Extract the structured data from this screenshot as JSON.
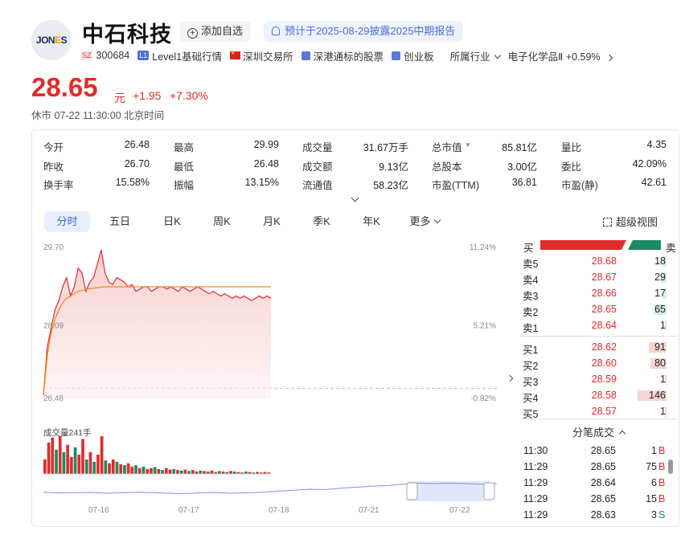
{
  "header": {
    "logo_text": "JONES",
    "stock_name": "中石科技",
    "add_fav": "添加自选",
    "notice": "预计于2025-08-29披露2025中期报告",
    "market_tag": "SZ",
    "code": "300684",
    "level_tag": "L1",
    "level_label": "Level1基础行情",
    "exchange": "深圳交易所",
    "connect": "深港通标的股票",
    "board": "创业板",
    "industry_label": "所属行业",
    "industry_name": "电子化学品Ⅱ",
    "industry_change": "+0.59%"
  },
  "quote": {
    "price": "28.65",
    "unit": "元",
    "change": "+1.95",
    "change_pct": "+7.30%",
    "status": "休市",
    "datetime": "07-22 11:30:00 北京时间"
  },
  "stats": [
    [
      {
        "label": "今开",
        "value": "26.48",
        "color": "green"
      },
      {
        "label": "最高",
        "value": "29.99",
        "color": "red"
      },
      {
        "label": "成交量",
        "value": "31.67万手",
        "color": ""
      },
      {
        "label": "总市值",
        "value": "85.81亿",
        "color": "",
        "caret": true
      },
      {
        "label": "量比",
        "value": "4.35",
        "color": "red"
      }
    ],
    [
      {
        "label": "昨收",
        "value": "26.70",
        "color": ""
      },
      {
        "label": "最低",
        "value": "26.48",
        "color": "green"
      },
      {
        "label": "成交额",
        "value": "9.13亿",
        "color": ""
      },
      {
        "label": "总股本",
        "value": "3.00亿",
        "color": ""
      },
      {
        "label": "委比",
        "value": "42.09%",
        "color": ""
      }
    ],
    [
      {
        "label": "换手率",
        "value": "15.58%",
        "color": ""
      },
      {
        "label": "振幅",
        "value": "13.15%",
        "color": ""
      },
      {
        "label": "流通值",
        "value": "58.23亿",
        "color": ""
      },
      {
        "label": "市盈(TTM)",
        "value": "36.81",
        "color": ""
      },
      {
        "label": "市盈(静)",
        "value": "42.61",
        "color": ""
      }
    ]
  ],
  "tabs": [
    "分时",
    "五日",
    "日K",
    "周K",
    "月K",
    "季K",
    "年K",
    "更多"
  ],
  "super_view": "超级视图",
  "chart_data": {
    "type": "line",
    "title": "",
    "y_labels_left": [
      "29.70",
      "28.09",
      "26.48"
    ],
    "y_labels_right": [
      "11.24%",
      "5.21%",
      "-0.82%"
    ],
    "ylim": [
      26.48,
      29.7
    ],
    "prev_close": 26.7,
    "price": [
      26.55,
      27.6,
      28.0,
      28.4,
      28.6,
      28.9,
      29.1,
      28.7,
      28.9,
      29.3,
      29.2,
      28.8,
      29.0,
      29.1,
      29.4,
      29.7,
      29.2,
      29.0,
      28.95,
      29.1,
      29.05,
      29.0,
      28.9,
      28.95,
      28.8,
      28.85,
      28.9,
      28.9,
      28.8,
      28.85,
      28.9,
      28.9,
      28.85,
      28.9,
      28.85,
      28.8,
      28.9,
      28.85,
      28.8,
      28.85,
      28.9,
      28.85,
      28.8,
      28.75,
      28.8,
      28.75,
      28.7,
      28.75,
      28.7,
      28.65,
      28.7,
      28.65,
      28.7,
      28.65,
      28.6,
      28.65,
      28.7,
      28.65,
      28.7,
      28.65
    ],
    "avg": [
      26.55,
      27.4,
      27.9,
      28.2,
      28.4,
      28.55,
      28.65,
      28.7,
      28.75,
      28.8,
      28.82,
      28.84,
      28.86,
      28.87,
      28.88,
      28.89,
      28.9,
      28.9,
      28.9,
      28.9,
      28.9,
      28.9,
      28.9,
      28.9,
      28.9,
      28.9,
      28.9,
      28.9,
      28.9,
      28.9,
      28.9,
      28.9,
      28.9,
      28.9,
      28.9,
      28.9,
      28.9,
      28.9,
      28.9,
      28.9,
      28.9,
      28.9,
      28.9,
      28.9,
      28.9,
      28.9,
      28.9,
      28.9,
      28.9,
      28.9,
      28.9,
      28.9,
      28.9,
      28.9,
      28.9,
      28.9,
      28.9,
      28.9,
      28.9,
      28.9
    ],
    "volume_label": "成交量241手",
    "volume": [
      30,
      65,
      75,
      50,
      78,
      45,
      60,
      35,
      55,
      40,
      72,
      30,
      45,
      25,
      40,
      78,
      28,
      22,
      30,
      25,
      20,
      18,
      22,
      15,
      18,
      12,
      15,
      10,
      12,
      14,
      10,
      8,
      12,
      9,
      10,
      8,
      7,
      9,
      6,
      8,
      5,
      7,
      6,
      5,
      7,
      4,
      6,
      5,
      4,
      6,
      5,
      4,
      3,
      5,
      4,
      3,
      4,
      3,
      4,
      3
    ],
    "vol_up": [
      1,
      1,
      1,
      0,
      1,
      0,
      1,
      1,
      0,
      1,
      1,
      0,
      1,
      0,
      1,
      1,
      0,
      1,
      1,
      0,
      1,
      0,
      1,
      1,
      0,
      1,
      0,
      1,
      1,
      0,
      1,
      0,
      1,
      1,
      0,
      1,
      0,
      1,
      0,
      1,
      1,
      0,
      1,
      0,
      1,
      1,
      0,
      1,
      0,
      1,
      0,
      1,
      1,
      0,
      1,
      0,
      1,
      0,
      1,
      1
    ],
    "dates": [
      "07-16",
      "07-17",
      "07-18",
      "07-21",
      "07-22"
    ],
    "mini_trend": [
      0.55,
      0.58,
      0.57,
      0.56,
      0.6,
      0.58,
      0.55,
      0.57,
      0.6,
      0.62,
      0.58,
      0.56,
      0.6,
      0.58,
      0.55,
      0.5,
      0.45,
      0.4,
      0.42,
      0.35,
      0.3,
      0.25,
      0.22,
      0.15,
      0.1,
      0.12,
      0.1,
      0.12,
      0.15,
      0.12
    ]
  },
  "order_book": {
    "asks": [
      {
        "label": "卖5",
        "price": "28.68",
        "vol": "18",
        "bar": 0.12
      },
      {
        "label": "卖4",
        "price": "28.67",
        "vol": "29",
        "bar": 0.2
      },
      {
        "label": "卖3",
        "price": "28.66",
        "vol": "17",
        "bar": 0.12
      },
      {
        "label": "卖2",
        "price": "28.65",
        "vol": "65",
        "bar": 0.45
      },
      {
        "label": "卖1",
        "price": "28.64",
        "vol": "1",
        "bar": 0.02
      }
    ],
    "bids": [
      {
        "label": "买1",
        "price": "28.62",
        "vol": "91",
        "bar": 0.62
      },
      {
        "label": "买2",
        "price": "28.60",
        "vol": "80",
        "bar": 0.55
      },
      {
        "label": "买3",
        "price": "28.59",
        "vol": "1",
        "bar": 0.02
      },
      {
        "label": "买4",
        "price": "28.58",
        "vol": "146",
        "bar": 1.0
      },
      {
        "label": "买5",
        "price": "28.57",
        "vol": "1",
        "bar": 0.02
      }
    ],
    "buy_label": "买",
    "sell_label": "卖",
    "buy_ratio": 0.71
  },
  "ticks_header": "分笔成交",
  "ticks": [
    {
      "time": "11:30",
      "price": "28.65",
      "vol": "1",
      "side": "B"
    },
    {
      "time": "11:29",
      "price": "28.65",
      "vol": "75",
      "side": "B"
    },
    {
      "time": "11:29",
      "price": "28.64",
      "vol": "6",
      "side": "B"
    },
    {
      "time": "11:29",
      "price": "28.65",
      "vol": "15",
      "side": "B"
    },
    {
      "time": "11:29",
      "price": "28.63",
      "vol": "3",
      "side": "S"
    }
  ],
  "colors": {
    "up": "#e02c2c",
    "down": "#1c8a62",
    "accent": "#3a64d8",
    "avg": "#f08a24"
  }
}
